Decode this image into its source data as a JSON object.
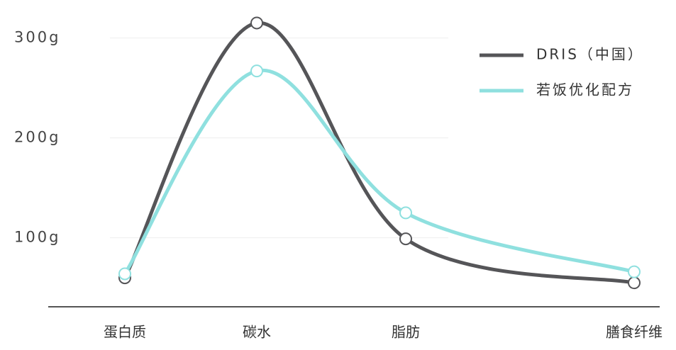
{
  "chart_data": {
    "type": "line",
    "categories": [
      "蛋白质",
      "碳水",
      "脂肪",
      "膳食纤维"
    ],
    "series": [
      {
        "name": "DRIS（中国）",
        "color": "#555558",
        "values": [
          60,
          315,
          99,
          55
        ]
      },
      {
        "name": "若饭优化配方",
        "color": "#8fe0df",
        "values": [
          64,
          267,
          125,
          66
        ]
      }
    ],
    "ylim": [
      31,
      338
    ],
    "yticks": [
      {
        "value": 100,
        "label": "100g"
      },
      {
        "value": 200,
        "label": "200g"
      },
      {
        "value": 300,
        "label": "300g"
      }
    ],
    "grid": true,
    "legend": "top-right"
  }
}
